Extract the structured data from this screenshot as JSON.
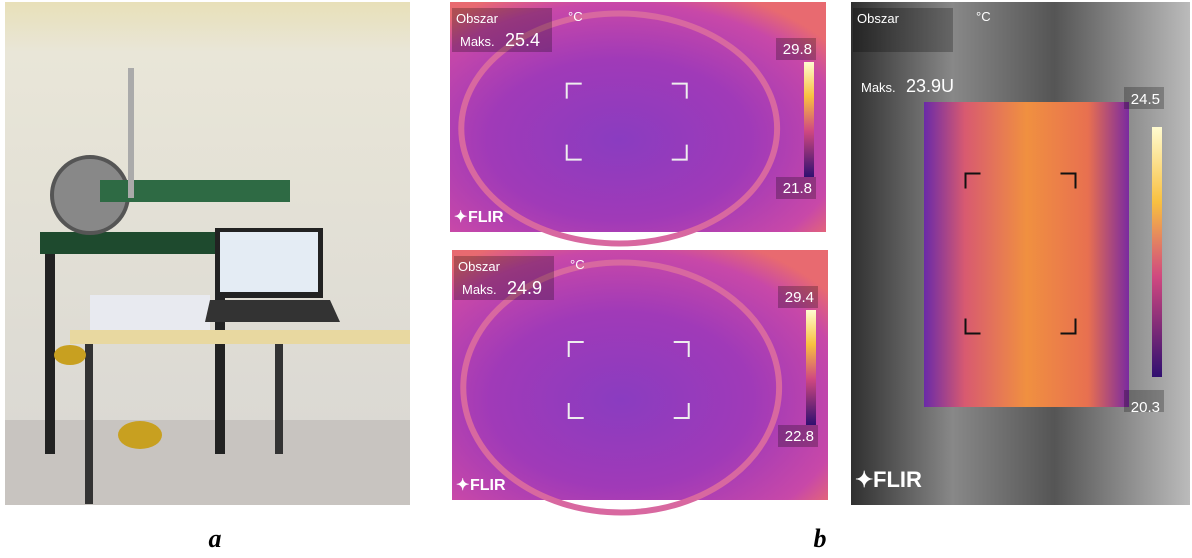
{
  "photo": {
    "label": "a"
  },
  "thermal": {
    "label": "b",
    "images": [
      {
        "area": "Obszar",
        "unit": "°C",
        "max_label": "Maks.",
        "max_value": "25.4",
        "scale_max": "29.8",
        "scale_min": "21.8",
        "brand": "FLIR"
      },
      {
        "area": "Obszar",
        "unit": "°C",
        "max_label": "Maks.",
        "max_value": "24.9",
        "scale_max": "29.4",
        "scale_min": "22.8",
        "brand": "FLIR"
      },
      {
        "area": "Obszar",
        "unit": "°C",
        "max_label": "Maks.",
        "max_value": "23.9U",
        "scale_max": "24.5",
        "scale_min": "20.3",
        "brand": "FLIR"
      }
    ]
  }
}
